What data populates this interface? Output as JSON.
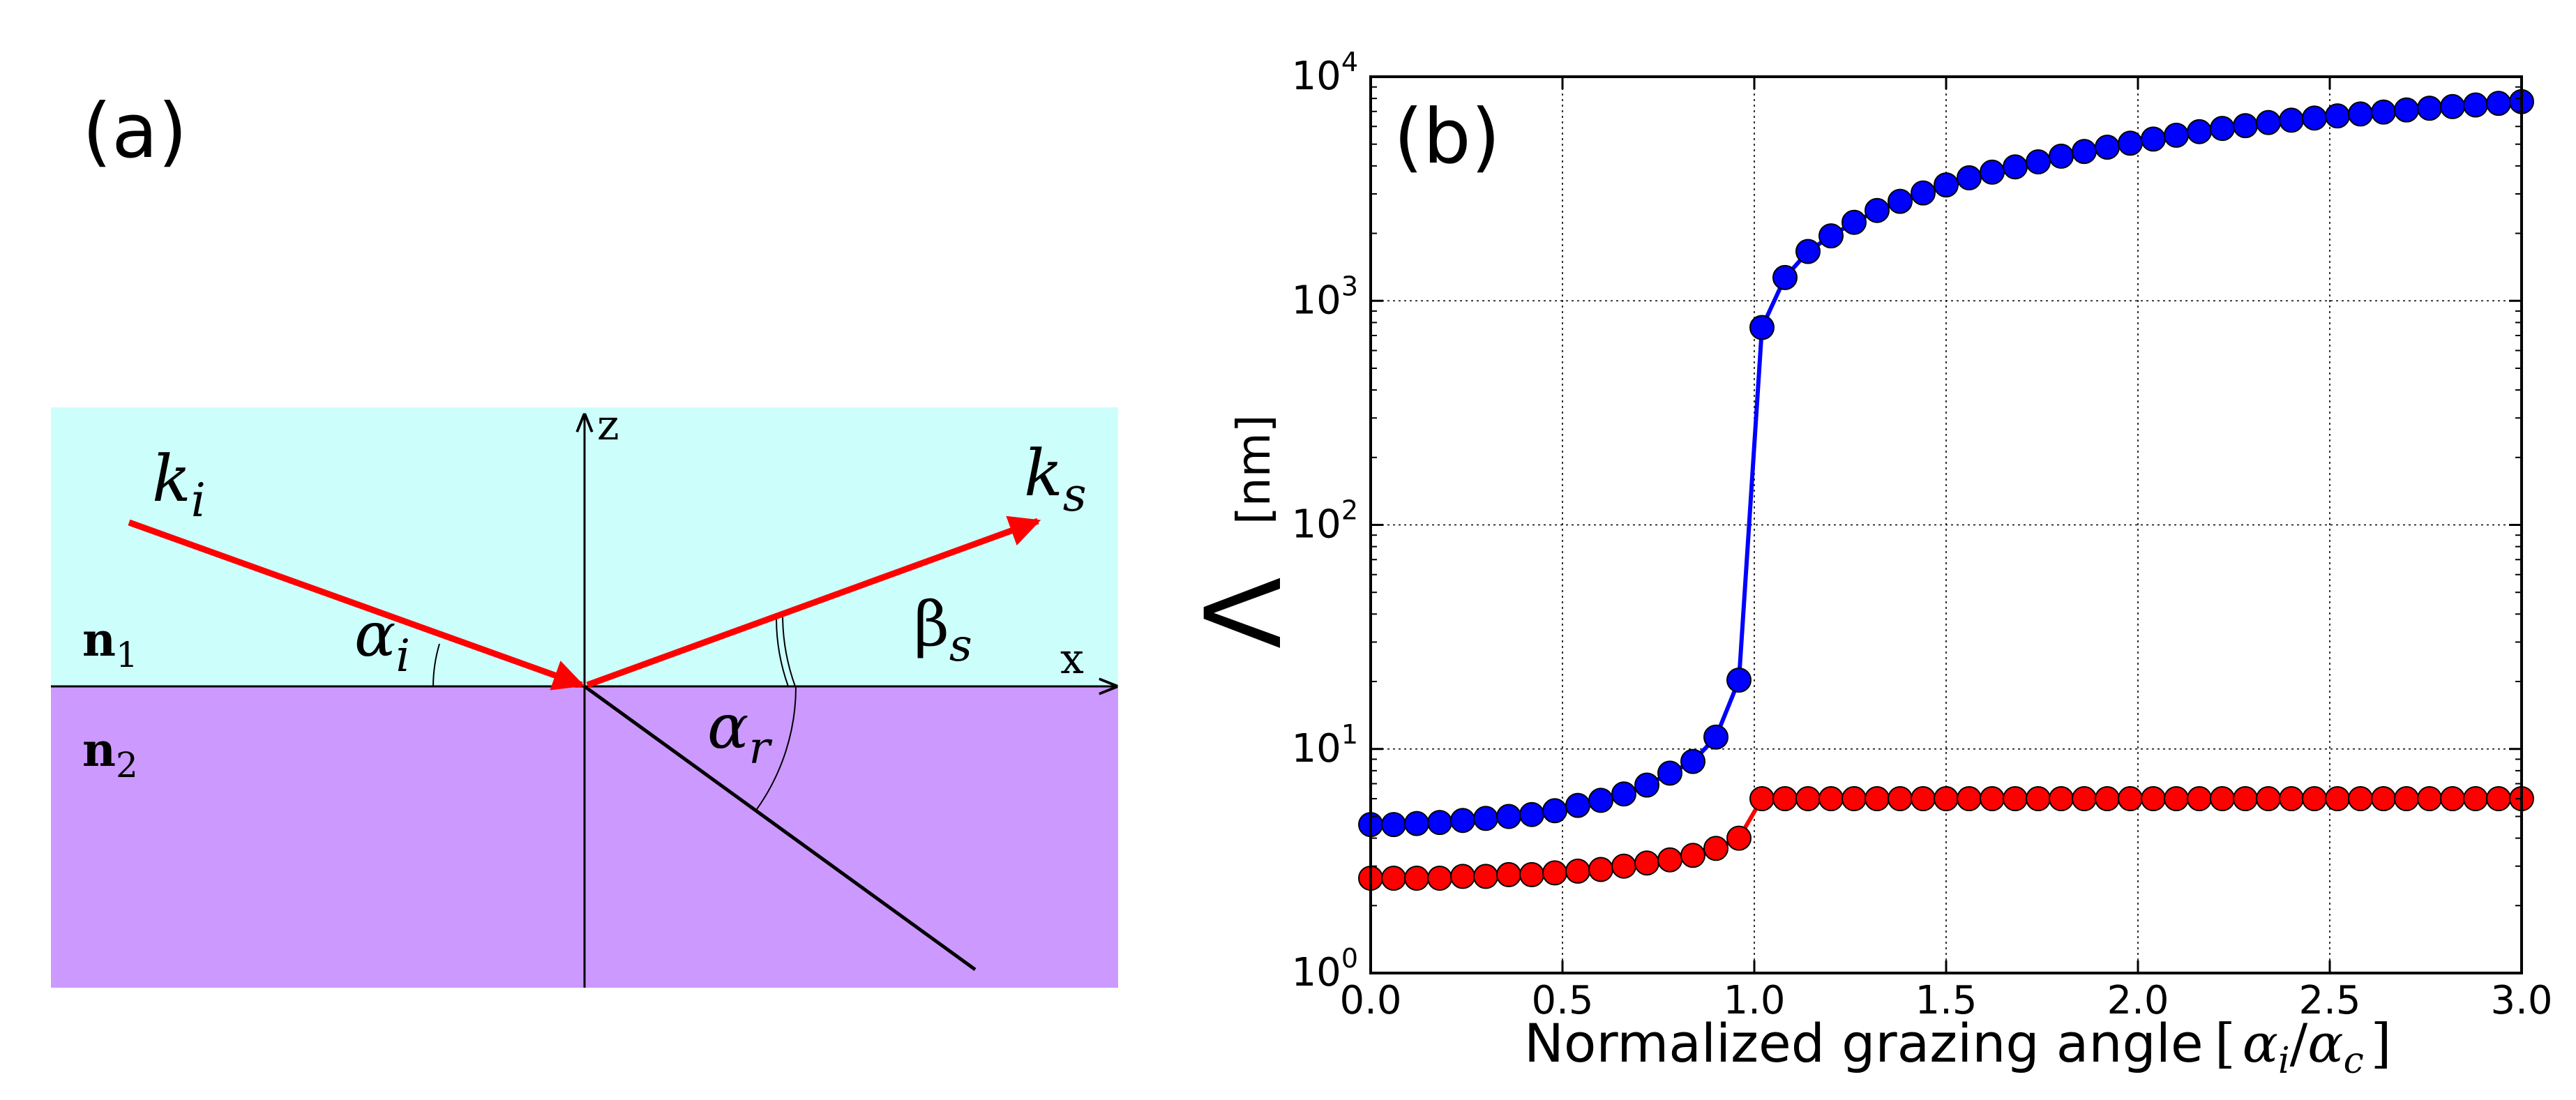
{
  "panel_a": {
    "label": "(a)",
    "k_incident": {
      "base": "k",
      "sub": "i"
    },
    "k_scattered": {
      "base": "k",
      "sub": "s"
    },
    "axis_z": "z",
    "axis_x": "x",
    "medium_1": {
      "base": "n",
      "sub": "1"
    },
    "medium_2": {
      "base": "n",
      "sub": "2"
    },
    "angle_incident": {
      "base": "α",
      "sub": "i"
    },
    "angle_scattered": {
      "base": "β",
      "sub": "s"
    },
    "angle_refracted": {
      "base": "α",
      "sub": "r"
    },
    "colors": {
      "upper_medium": "#ccfffc",
      "lower_medium": "#cc99ff",
      "beam": "#ff0000",
      "line": "#000000"
    }
  },
  "panel_b": {
    "label": "(b)",
    "xlabel": "Normalized grazing angle",
    "xlabel_unit": {
      "open": "[",
      "a": "α",
      "a_sub": "i",
      "slash": "/",
      "b": "α",
      "b_sub": "c",
      "close": "]"
    },
    "ylabel_symbol": "Λ",
    "ylabel_unit": "[nm]"
  },
  "chart_data": {
    "type": "line",
    "title": "",
    "xlabel": "Normalized grazing angle [αi/αc]",
    "ylabel": "Λ [nm]",
    "xlim": [
      0.0,
      3.0
    ],
    "ylim": [
      1,
      10000
    ],
    "yscale": "log",
    "grid": true,
    "xticks": [
      "0.0",
      "0.5",
      "1.0",
      "1.5",
      "2.0",
      "2.5",
      "3.0"
    ],
    "yticks": [
      {
        "base": "10",
        "exp": "0"
      },
      {
        "base": "10",
        "exp": "1"
      },
      {
        "base": "10",
        "exp": "2"
      },
      {
        "base": "10",
        "exp": "3"
      },
      {
        "base": "10",
        "exp": "4"
      }
    ],
    "series": [
      {
        "name": "blue",
        "color": "#0000ff",
        "x": [
          0.0,
          0.06,
          0.12,
          0.18,
          0.24,
          0.3,
          0.36,
          0.42,
          0.48,
          0.54,
          0.6,
          0.66,
          0.72,
          0.78,
          0.84,
          0.9,
          0.96,
          1.02,
          1.08,
          1.14,
          1.2,
          1.26,
          1.32,
          1.38,
          1.44,
          1.5,
          1.56,
          1.62,
          1.68,
          1.74,
          1.8,
          1.86,
          1.92,
          1.98,
          2.04,
          2.1,
          2.16,
          2.22,
          2.28,
          2.34,
          2.4,
          2.46,
          2.52,
          2.58,
          2.64,
          2.7,
          2.76,
          2.82,
          2.88,
          2.94,
          3.0
        ],
        "y": [
          4.6,
          4.6,
          4.65,
          4.7,
          4.8,
          4.9,
          5.0,
          5.1,
          5.3,
          5.6,
          5.9,
          6.3,
          6.9,
          7.8,
          8.8,
          11.3,
          20.3,
          760,
          1270,
          1660,
          1950,
          2240,
          2530,
          2780,
          3030,
          3290,
          3540,
          3750,
          3960,
          4170,
          4420,
          4640,
          4850,
          5050,
          5270,
          5480,
          5690,
          5880,
          6050,
          6250,
          6400,
          6540,
          6690,
          6820,
          6960,
          7110,
          7240,
          7360,
          7480,
          7610,
          7740
        ]
      },
      {
        "name": "red",
        "color": "#ff0000",
        "x": [
          0.0,
          0.06,
          0.12,
          0.18,
          0.24,
          0.3,
          0.36,
          0.42,
          0.48,
          0.54,
          0.6,
          0.66,
          0.72,
          0.78,
          0.84,
          0.9,
          0.96,
          1.02,
          1.08,
          1.14,
          1.2,
          1.26,
          1.32,
          1.38,
          1.44,
          1.5,
          1.56,
          1.62,
          1.68,
          1.74,
          1.8,
          1.86,
          1.92,
          1.98,
          2.04,
          2.1,
          2.16,
          2.22,
          2.28,
          2.34,
          2.4,
          2.46,
          2.52,
          2.58,
          2.64,
          2.7,
          2.76,
          2.82,
          2.88,
          2.94,
          3.0
        ],
        "y": [
          2.65,
          2.65,
          2.65,
          2.65,
          2.7,
          2.7,
          2.75,
          2.75,
          2.8,
          2.85,
          2.9,
          3.0,
          3.1,
          3.2,
          3.35,
          3.6,
          4.0,
          6.0,
          6.0,
          6.0,
          6.0,
          6.0,
          6.0,
          6.0,
          6.0,
          6.0,
          6.0,
          6.0,
          6.0,
          6.0,
          6.0,
          6.0,
          6.0,
          6.0,
          6.0,
          6.0,
          6.0,
          6.0,
          6.0,
          6.0,
          6.0,
          6.0,
          6.0,
          6.0,
          6.0,
          6.0,
          6.0,
          6.0,
          6.0,
          6.0,
          6.0
        ]
      }
    ]
  }
}
